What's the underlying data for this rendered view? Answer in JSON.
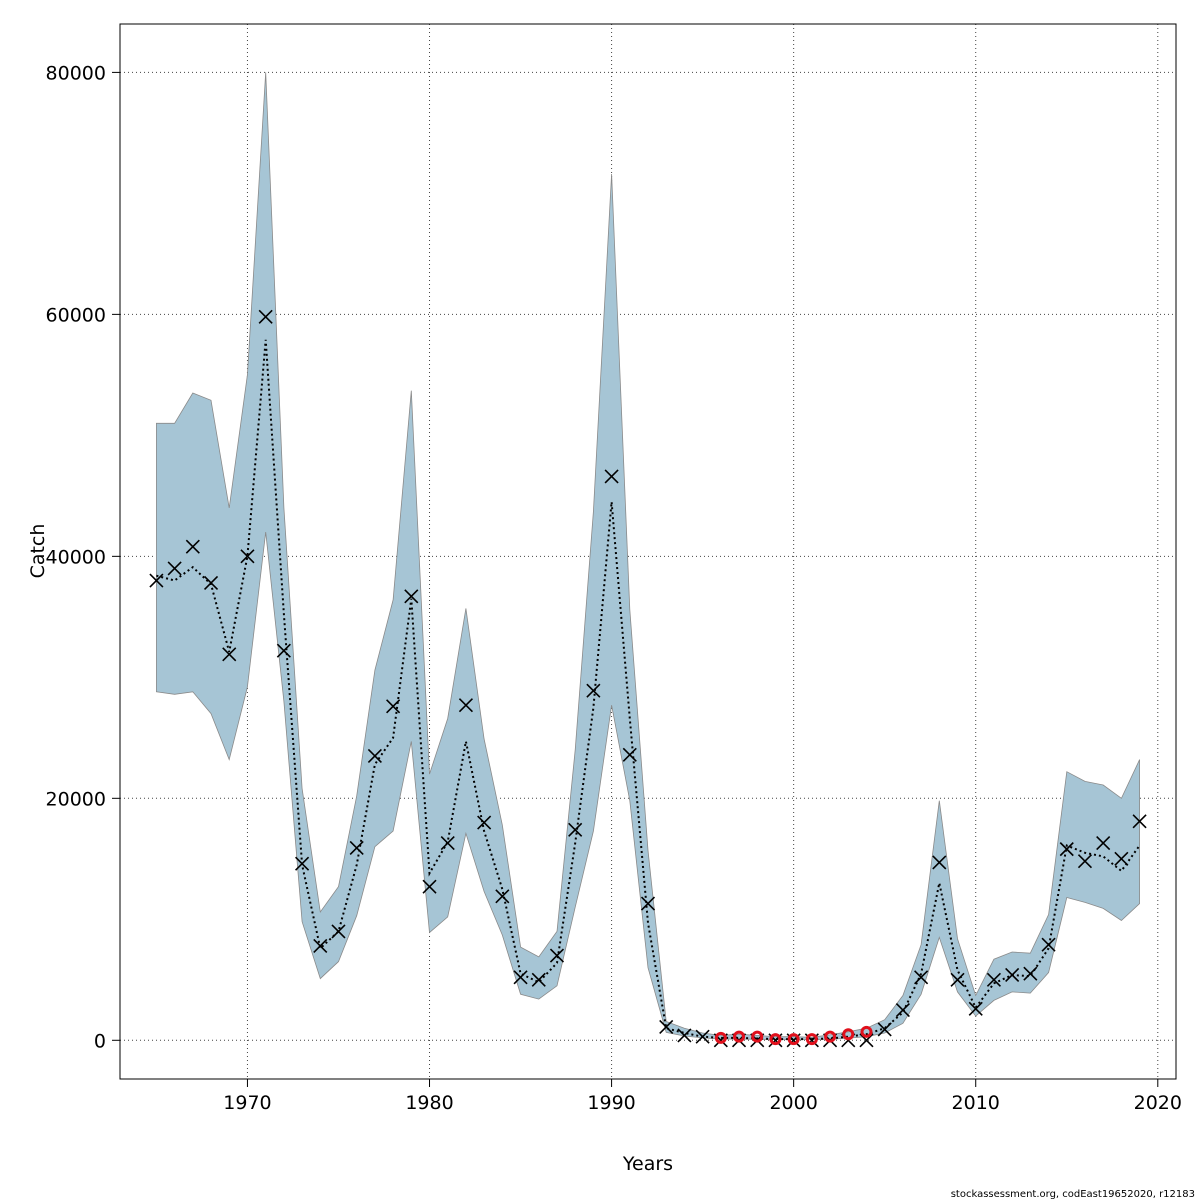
{
  "chart_data": {
    "type": "line",
    "title": "",
    "xlabel": "Years",
    "ylabel": "Catch",
    "xlim": [
      1963,
      2021
    ],
    "ylim": [
      -3200,
      84000
    ],
    "grid": true,
    "x_ticks": [
      1970,
      1980,
      1990,
      2000,
      2010,
      2020
    ],
    "y_ticks": [
      0,
      20000,
      40000,
      60000,
      80000
    ],
    "x_tick_labels": [
      "1970",
      "1980",
      "1990",
      "2000",
      "2010",
      "2020"
    ],
    "y_tick_labels": [
      "0",
      "20000",
      "40000",
      "60000",
      "80000"
    ],
    "band_color": "#a6c5d5",
    "band_edge_color": "#8a8a8a",
    "estimate_color": "#000000",
    "observed_color": "#000000",
    "highlight_color": "#e0101c",
    "series": [
      {
        "kind": "band",
        "x": [
          1965,
          1966,
          1967,
          1968,
          1969,
          1970,
          1971,
          1972,
          1973,
          1974,
          1975,
          1976,
          1977,
          1978,
          1979,
          1980,
          1981,
          1982,
          1983,
          1984,
          1985,
          1986,
          1987,
          1988,
          1989,
          1990,
          1991,
          1992,
          1993,
          1994,
          1995,
          1996,
          1997,
          1998,
          1999,
          2000,
          2001,
          2002,
          2003,
          2004,
          2005,
          2006,
          2007,
          2008,
          2009,
          2010,
          2011,
          2012,
          2013,
          2014,
          2015,
          2016,
          2017,
          2018,
          2019
        ],
        "lower": [
          28800,
          28600,
          28800,
          27000,
          23200,
          29200,
          42000,
          28000,
          9800,
          5100,
          6500,
          10300,
          16000,
          17300,
          24700,
          8900,
          10200,
          17100,
          12300,
          8700,
          3800,
          3400,
          4500,
          11000,
          17300,
          27700,
          19800,
          6000,
          650,
          350,
          200,
          100,
          100,
          80,
          60,
          60,
          60,
          70,
          180,
          300,
          600,
          1400,
          3800,
          8500,
          4000,
          2000,
          3300,
          4000,
          3900,
          5600,
          11800,
          11400,
          10900,
          9900,
          11300
        ],
        "upper": [
          51000,
          51000,
          53500,
          52900,
          44000,
          55000,
          80000,
          44000,
          20800,
          10600,
          12700,
          20200,
          30600,
          36400,
          53700,
          22000,
          26600,
          35700,
          24900,
          17800,
          7700,
          6900,
          9000,
          24000,
          43700,
          71600,
          35600,
          15700,
          1550,
          1000,
          600,
          400,
          500,
          400,
          300,
          300,
          250,
          450,
          700,
          1000,
          1700,
          3700,
          7900,
          19800,
          8400,
          3700,
          6700,
          7300,
          7200,
          10400,
          22200,
          21400,
          21100,
          20000,
          23200
        ]
      },
      {
        "kind": "estimate",
        "x": [
          1965,
          1966,
          1967,
          1968,
          1969,
          1970,
          1971,
          1972,
          1973,
          1974,
          1975,
          1976,
          1977,
          1978,
          1979,
          1980,
          1981,
          1982,
          1983,
          1984,
          1985,
          1986,
          1987,
          1988,
          1989,
          1990,
          1991,
          1992,
          1993,
          1994,
          1995,
          1996,
          1997,
          1998,
          1999,
          2000,
          2001,
          2002,
          2003,
          2004,
          2005,
          2006,
          2007,
          2008,
          2009,
          2010,
          2011,
          2012,
          2013,
          2014,
          2015,
          2016,
          2017,
          2018,
          2019
        ],
        "values": [
          38400,
          38000,
          39100,
          37700,
          32100,
          40000,
          57900,
          35200,
          14500,
          7600,
          9000,
          14500,
          22800,
          25000,
          36500,
          13800,
          16400,
          24700,
          17300,
          12500,
          5500,
          4800,
          6400,
          16300,
          27500,
          44500,
          26600,
          9700,
          1000,
          600,
          300,
          200,
          200,
          150,
          100,
          100,
          100,
          150,
          300,
          500,
          1000,
          2300,
          5500,
          13000,
          5800,
          2700,
          4700,
          5400,
          5300,
          7600,
          16100,
          15500,
          15200,
          14000,
          16100
        ]
      },
      {
        "kind": "observed",
        "x": [
          1965,
          1966,
          1967,
          1968,
          1969,
          1970,
          1971,
          1972,
          1973,
          1974,
          1975,
          1976,
          1977,
          1978,
          1979,
          1980,
          1981,
          1982,
          1983,
          1984,
          1985,
          1986,
          1987,
          1988,
          1989,
          1990,
          1991,
          1992,
          1993,
          1994,
          1995,
          1996,
          1997,
          1998,
          1999,
          2000,
          2001,
          2002,
          2003,
          2004,
          2005,
          2006,
          2007,
          2008,
          2009,
          2010,
          2011,
          2012,
          2013,
          2014,
          2015,
          2016,
          2017,
          2018,
          2019
        ],
        "values": [
          38000,
          39000,
          40800,
          37800,
          31900,
          40000,
          59800,
          32200,
          14600,
          7800,
          9000,
          15900,
          23500,
          27600,
          36700,
          12700,
          16300,
          27700,
          18000,
          11900,
          5200,
          5000,
          7000,
          17400,
          28900,
          46600,
          23600,
          11300,
          1100,
          400,
          300,
          0,
          0,
          0,
          0,
          0,
          0,
          0,
          0,
          0,
          900,
          2500,
          5200,
          14700,
          5000,
          2600,
          5000,
          5400,
          5500,
          7900,
          15800,
          14800,
          16300,
          15000,
          18100
        ]
      },
      {
        "kind": "highlighted",
        "x": [
          1996,
          1997,
          1998,
          1999,
          2000,
          2001,
          2002,
          2003,
          2004
        ],
        "values": [
          200,
          300,
          300,
          100,
          100,
          100,
          300,
          500,
          700
        ]
      }
    ],
    "credit": "stockassessment.org, codEast19652020, r12183"
  }
}
